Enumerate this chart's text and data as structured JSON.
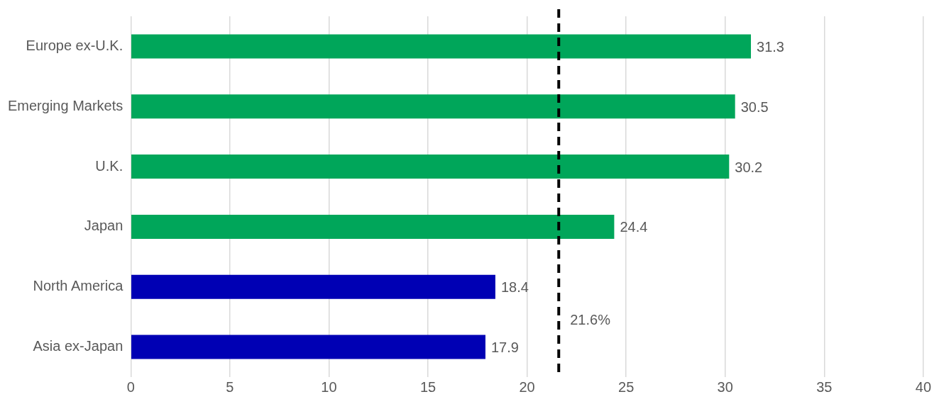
{
  "chart_data": {
    "type": "bar",
    "orientation": "horizontal",
    "categories": [
      "Europe ex-U.K.",
      "Emerging Markets",
      "U.K.",
      "Japan",
      "North America",
      "Asia ex-Japan"
    ],
    "values": [
      31.3,
      30.5,
      30.2,
      24.4,
      18.4,
      17.9
    ],
    "colors": [
      "#00a65a",
      "#00a65a",
      "#00a65a",
      "#00a65a",
      "#0000b4",
      "#0000b4"
    ],
    "xlim": [
      0,
      40
    ],
    "xticks": [
      0,
      5,
      10,
      15,
      20,
      25,
      30,
      35,
      40
    ],
    "grid": "x",
    "data_labels": true,
    "legend": false,
    "ref_lines": [
      {
        "axis": "x",
        "value": 21.6,
        "label": "21.6%",
        "color": "#000000",
        "line_style": "dashed"
      }
    ]
  }
}
